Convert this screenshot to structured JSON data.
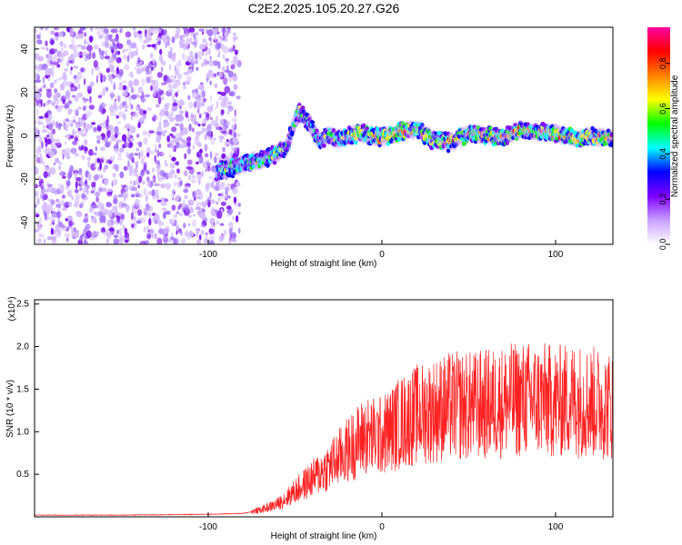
{
  "title": "C2E2.2025.105.20.27.G26",
  "chart_data": [
    {
      "type": "heatmap",
      "xlabel": "Height of straight line (km)",
      "ylabel": "Frequency (Hz)",
      "xlim": [
        -200,
        133
      ],
      "ylim": [
        -50,
        50
      ],
      "xticks": [
        "-100",
        "0",
        "100"
      ],
      "yticks": [
        "-40",
        "-20",
        "0",
        "20",
        "40"
      ],
      "noise_region_xlim": [
        -200,
        -82
      ],
      "ridge": {
        "x": [
          -95,
          -82,
          -75,
          -65,
          -55,
          -48,
          -42,
          -36,
          -30,
          -25,
          -20,
          -10,
          0,
          10,
          20,
          30,
          40,
          50,
          60,
          70,
          80,
          90,
          100,
          110,
          120,
          133
        ],
        "y": [
          -16,
          -14,
          -12,
          -10,
          -6,
          12,
          6,
          -2,
          0,
          -2,
          0,
          1,
          -1,
          2,
          3,
          -2,
          -3,
          1,
          0,
          -1,
          3,
          2,
          1,
          -1,
          0,
          -1
        ]
      },
      "colorbar": {
        "label": "Normalized spectral amplitude",
        "range": [
          0,
          0.96
        ],
        "ticks": [
          "0.0",
          "0.2",
          "0.4",
          "0.6",
          "0.8"
        ],
        "colors": [
          "#ffffff",
          "#c8a0ff",
          "#7f00ff",
          "#0000ff",
          "#00ffff",
          "#00ff00",
          "#ffff00",
          "#ff8000",
          "#ff0000",
          "#ff00a0"
        ]
      }
    },
    {
      "type": "line",
      "xlabel": "Height of straight line (km)",
      "ylabel": "SNR (10 * v/v)",
      "y_multiplier": "(x10⁴)",
      "xlim": [
        -200,
        133
      ],
      "ylim": [
        0,
        2.55
      ],
      "xticks": [
        "-100",
        "0",
        "100"
      ],
      "yticks": [
        "0.5",
        "1.0",
        "1.5",
        "2.0",
        "2.5"
      ],
      "color": "#ff2020",
      "series": [
        {
          "x": [
            -200,
            -150,
            -100,
            -80,
            -70,
            -60,
            -50,
            -40,
            -30,
            -20,
            -10,
            0,
            10,
            20,
            30,
            40,
            50,
            60,
            70,
            80,
            90,
            100,
            110,
            120,
            133
          ],
          "y": [
            0.02,
            0.02,
            0.03,
            0.04,
            0.08,
            0.15,
            0.3,
            0.45,
            0.6,
            0.78,
            0.95,
            0.95,
            1.1,
            1.2,
            1.25,
            1.3,
            1.3,
            1.32,
            1.35,
            1.38,
            1.38,
            1.35,
            1.38,
            1.35,
            1.3
          ]
        }
      ]
    }
  ]
}
